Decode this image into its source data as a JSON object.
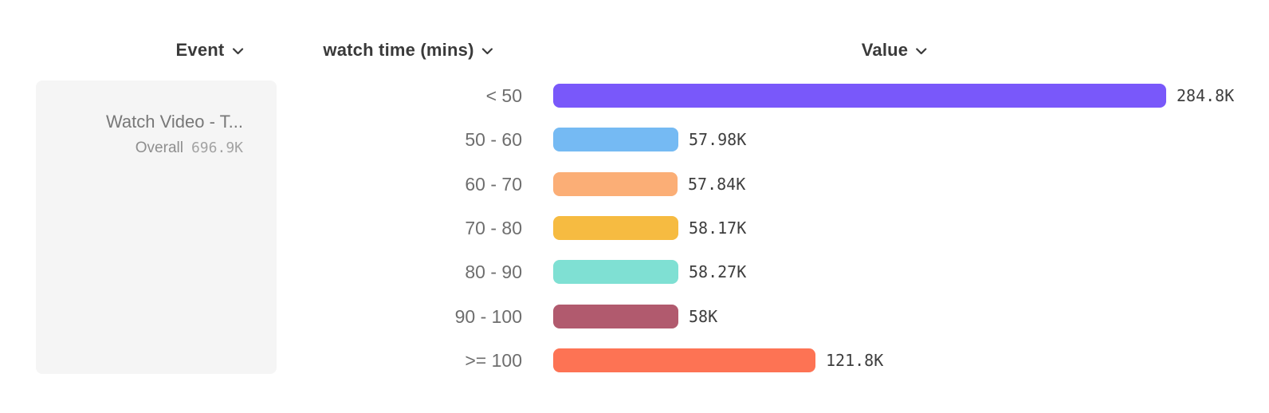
{
  "columns": {
    "event": {
      "label": "Event"
    },
    "breakdown": {
      "label": "watch time (mins)"
    },
    "value": {
      "label": "Value"
    }
  },
  "event_card": {
    "title": "Watch Video - T...",
    "overall_label": "Overall",
    "overall_value": "696.9K"
  },
  "chart_data": {
    "type": "bar",
    "orientation": "horizontal",
    "title": "",
    "xlabel": "Value",
    "ylabel": "watch time (mins)",
    "categories": [
      "< 50",
      "50 - 60",
      "60 - 70",
      "70 - 80",
      "80 - 90",
      "90 - 100",
      ">= 100"
    ],
    "values": [
      284800,
      57980,
      57840,
      58170,
      58270,
      58000,
      121800
    ],
    "value_labels": [
      "284.8K",
      "57.98K",
      "57.84K",
      "58.17K",
      "58.27K",
      "58K",
      "121.8K"
    ],
    "bar_colors": [
      "#7958FA",
      "#75BAF3",
      "#FBAE76",
      "#F6BB41",
      "#7FE0D3",
      "#B15A6E",
      "#FD7354"
    ],
    "xlim": [
      0,
      284800
    ],
    "grid": false,
    "legend": "none",
    "colors": {
      "header_text": "#3a3a3a",
      "category_text": "#6e6e6e",
      "value_text": "#3e3e3e",
      "card_background": "#f5f5f5"
    }
  }
}
